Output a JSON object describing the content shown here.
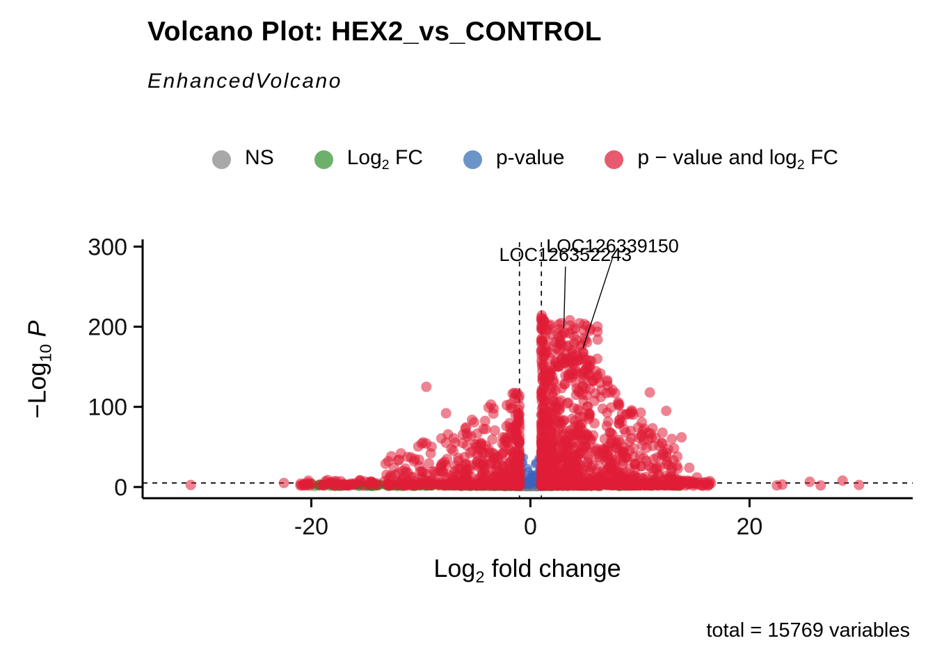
{
  "chart_data": {
    "type": "scatter",
    "title": "Volcano Plot: HEX2_vs_CONTROL",
    "subtitle": "EnhancedVolcano",
    "caption": "total = 15769 variables",
    "xlabel_parts": {
      "pre": "Log",
      "sub": "2",
      "post": " fold change"
    },
    "ylabel_parts": {
      "pre": "−Log",
      "sub": "10",
      "italic": "P"
    },
    "xlim": [
      -35.4,
      34.9
    ],
    "ylim": [
      -14,
      309
    ],
    "xticks": [
      -20,
      0,
      20
    ],
    "yticks": [
      0,
      100,
      200,
      300
    ],
    "grid": false,
    "legend_position": "top",
    "cutoffs": {
      "x": [
        -1,
        1
      ],
      "y": 5
    },
    "legend": [
      {
        "key": "ns",
        "color": "#a8a8a8",
        "parts": {
          "pre": "NS",
          "sub": "",
          "post": ""
        }
      },
      {
        "key": "fc",
        "color": "#6cb06c",
        "parts": {
          "pre": "Log",
          "sub": "2",
          "post": " FC"
        }
      },
      {
        "key": "pv",
        "color": "#6b95c9",
        "parts": {
          "pre": "p-value",
          "sub": "",
          "post": ""
        }
      },
      {
        "key": "sig",
        "color": "#e65b6d",
        "parts": {
          "pre": "p − value and log",
          "sub": "2",
          "post": " FC"
        }
      }
    ],
    "point_colors": {
      "ns": "rgba(125,125,125,0.5)",
      "fc": "rgba(42,139,42,0.5)",
      "pv": "rgba(58,98,190,0.6)",
      "sig": "rgba(224,30,54,0.55)"
    },
    "point_radius": {
      "ns": 6.5,
      "fc": 6.5,
      "pv": 6,
      "sig": 7.5
    },
    "seed": 7,
    "clusters": [
      {
        "cat": "sig",
        "n": 1100,
        "x": [
          1,
          13.5
        ],
        "xbias": 2.2,
        "y": [
          2,
          215
        ],
        "ybias": 3,
        "env": 0.22
      },
      {
        "cat": "sig",
        "n": 520,
        "x": [
          -1,
          -13.5
        ],
        "xbias": 2.2,
        "y": [
          2,
          122
        ],
        "ybias": 3,
        "env": 0.3
      },
      {
        "cat": "sig",
        "n": 65,
        "x": [
          2.3,
          6.2
        ],
        "xbias": 1,
        "y": [
          132,
          205
        ],
        "ybias": 1
      },
      {
        "cat": "sig",
        "n": 55,
        "x": [
          -14,
          -21
        ],
        "xbias": 1.4,
        "y": [
          1.5,
          9
        ],
        "ybias": 1.5
      },
      {
        "cat": "sig",
        "n": 45,
        "x": [
          13.5,
          16.5
        ],
        "xbias": 1.4,
        "y": [
          1.5,
          9
        ],
        "ybias": 1.5
      },
      {
        "cat": "pv",
        "n": 48,
        "x": [
          -0.9,
          0.95
        ],
        "xbias": 1,
        "y": [
          2.5,
          40
        ],
        "ybias": 1.8
      },
      {
        "cat": "fc",
        "n": 270,
        "x": [
          -1.2,
          -20
        ],
        "xbias": 1.7,
        "y": [
          0.3,
          4.3
        ],
        "ybias": 1.2
      },
      {
        "cat": "fc",
        "n": 150,
        "x": [
          1.2,
          14
        ],
        "xbias": 1.9,
        "y": [
          0.3,
          4.3
        ],
        "ybias": 1.2
      },
      {
        "cat": "ns",
        "n": 170,
        "x": [
          -1.05,
          1.05
        ],
        "xbias": 1,
        "y": [
          0.2,
          3.8
        ],
        "ybias": 1.3
      }
    ],
    "outliers": [
      {
        "cat": "sig",
        "points": [
          [
            -31,
            2.5
          ],
          [
            -22.5,
            5
          ],
          [
            -21,
            2
          ],
          [
            22.5,
            2
          ],
          [
            23,
            3
          ],
          [
            25.5,
            6.5
          ],
          [
            26.5,
            2
          ],
          [
            28.5,
            8
          ],
          [
            30,
            2.5
          ],
          [
            -9.5,
            125
          ],
          [
            10.9,
            118
          ],
          [
            12.4,
            95
          ],
          [
            13.8,
            62
          ],
          [
            12.9,
            60
          ],
          [
            -7.7,
            92
          ],
          [
            14.5,
            24
          ],
          [
            15.2,
            12
          ],
          [
            3.05,
            193
          ],
          [
            4.8,
            168
          ],
          [
            2.6,
            203
          ],
          [
            3.6,
            208
          ],
          [
            4.1,
            198
          ]
        ]
      },
      {
        "cat": "fc",
        "points": [
          [
            -20.4,
            1.2
          ],
          [
            -19.8,
            2.6
          ]
        ]
      }
    ],
    "annotations": [
      {
        "label": "LOC126352243",
        "lx": 3.2,
        "ly": 282,
        "x": 3.05,
        "y": 193
      },
      {
        "label": "LOC126339150",
        "lx": 7.5,
        "ly": 293,
        "x": 4.8,
        "y": 168
      }
    ]
  }
}
